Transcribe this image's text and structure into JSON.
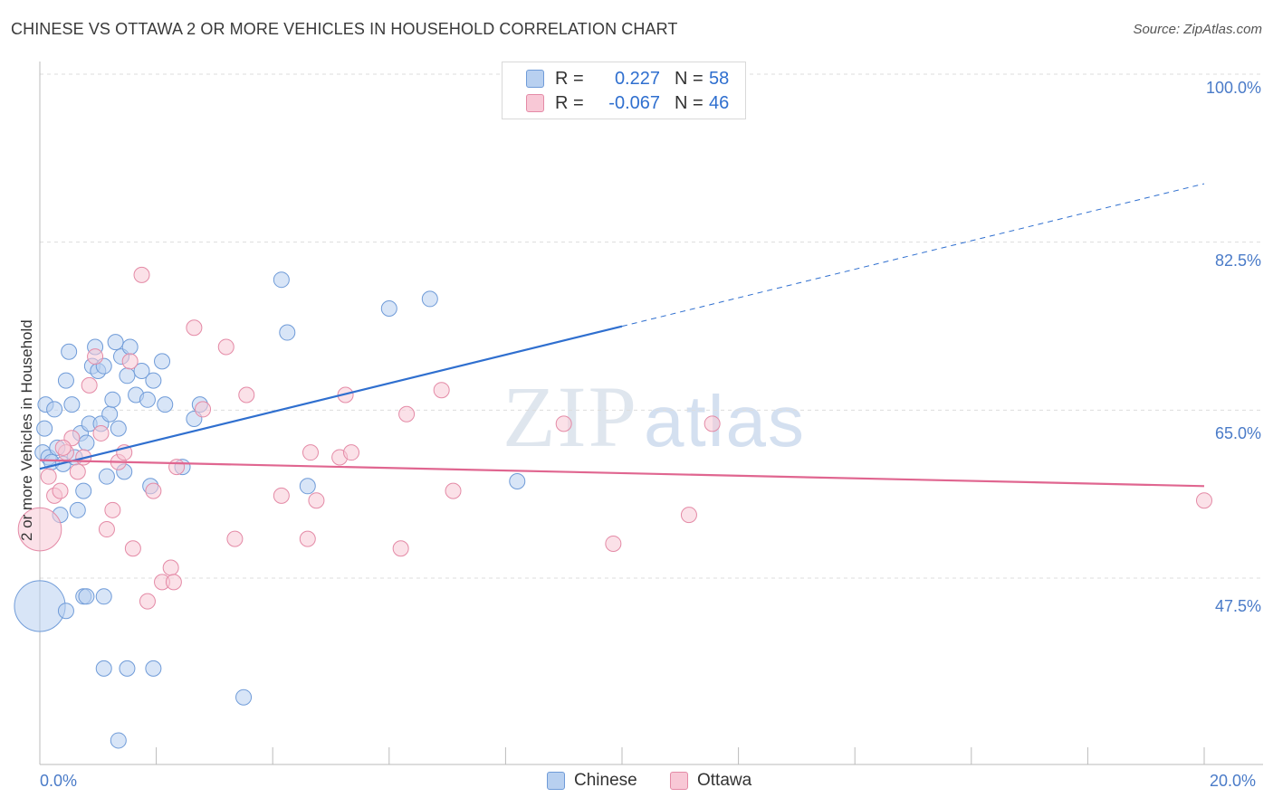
{
  "title": "CHINESE VS OTTAWA 2 OR MORE VEHICLES IN HOUSEHOLD CORRELATION CHART",
  "source": "Source: ZipAtlas.com",
  "watermark": {
    "zip": "ZIP",
    "atlas": "atlas"
  },
  "colors": {
    "chinese_fill": "#b8d0f0",
    "chinese_stroke": "#6f9bd8",
    "chinese_line": "#2f6fcf",
    "ottawa_fill": "#f8c8d6",
    "ottawa_stroke": "#e48aa6",
    "ottawa_line": "#e06690",
    "tick_text": "#4a7bc8",
    "grid": "#dddddd"
  },
  "legend": {
    "rows": [
      {
        "series": "Chinese",
        "r_label": "R =",
        "r_value": "0.227",
        "n_label": "N =",
        "n_value": "58"
      },
      {
        "series": "Ottawa",
        "r_label": "R =",
        "r_value": "-0.067",
        "n_label": "N =",
        "n_value": "46"
      }
    ]
  },
  "bottom_legend": [
    "Chinese",
    "Ottawa"
  ],
  "chart_data": {
    "type": "scatter",
    "title": "CHINESE VS OTTAWA 2 OR MORE VEHICLES IN HOUSEHOLD CORRELATION CHART",
    "xlabel": "",
    "ylabel": "2 or more Vehicles in Household",
    "xlim": [
      0,
      20
    ],
    "ylim": [
      32.5,
      100
    ],
    "x_ticks": [
      "0.0%",
      "20.0%"
    ],
    "y_ticks": [
      "100.0%",
      "82.5%",
      "65.0%",
      "47.5%"
    ],
    "y_tick_values": [
      100,
      82.5,
      65,
      47.5
    ],
    "grid": true,
    "series": [
      {
        "name": "Chinese",
        "trend": {
          "x0": 0,
          "y0": 60.3,
          "x1": 20,
          "y1": 90.0,
          "solid_until_x": 10
        },
        "points": [
          [
            0.05,
            62.0,
            1
          ],
          [
            0.08,
            64.5,
            1
          ],
          [
            0.1,
            67.0,
            1
          ],
          [
            0.15,
            61.5,
            1
          ],
          [
            0.2,
            61.0,
            1
          ],
          [
            0.25,
            66.5,
            1
          ],
          [
            0.3,
            62.5,
            1
          ],
          [
            0.35,
            55.5,
            1
          ],
          [
            0.4,
            60.8,
            1
          ],
          [
            0.45,
            69.5,
            1
          ],
          [
            0.5,
            72.5,
            1
          ],
          [
            0.55,
            67.0,
            1
          ],
          [
            0.6,
            61.5,
            1
          ],
          [
            0.65,
            56.0,
            1
          ],
          [
            0.7,
            64.0,
            1
          ],
          [
            0.75,
            58.0,
            1
          ],
          [
            0.8,
            63.0,
            1
          ],
          [
            0.85,
            65.0,
            1
          ],
          [
            0.9,
            71.0,
            1
          ],
          [
            0.95,
            73.0,
            1
          ],
          [
            1.0,
            70.5,
            1
          ],
          [
            1.05,
            65.0,
            1
          ],
          [
            1.1,
            71.0,
            1
          ],
          [
            1.15,
            59.5,
            1
          ],
          [
            1.2,
            66.0,
            1
          ],
          [
            1.25,
            67.5,
            1
          ],
          [
            1.3,
            73.5,
            1
          ],
          [
            1.35,
            64.5,
            1
          ],
          [
            1.4,
            72.0,
            1
          ],
          [
            1.45,
            60.0,
            1
          ],
          [
            1.5,
            70.0,
            1
          ],
          [
            1.55,
            73.0,
            1
          ],
          [
            1.65,
            68.0,
            1
          ],
          [
            1.75,
            70.5,
            1
          ],
          [
            1.85,
            67.5,
            1
          ],
          [
            1.9,
            58.5,
            1
          ],
          [
            1.95,
            69.5,
            1
          ],
          [
            2.1,
            71.5,
            1
          ],
          [
            2.15,
            67.0,
            1
          ],
          [
            2.45,
            60.5,
            1
          ],
          [
            2.65,
            65.5,
            1
          ],
          [
            2.75,
            67.0,
            1
          ],
          [
            4.15,
            80.0,
            1
          ],
          [
            4.25,
            74.5,
            1
          ],
          [
            4.6,
            58.5,
            1
          ],
          [
            6.0,
            77.0,
            1
          ],
          [
            6.7,
            78.0,
            1
          ],
          [
            8.2,
            59.0,
            1
          ],
          [
            0.0,
            46.0,
            3.3
          ],
          [
            0.45,
            45.5,
            1
          ],
          [
            0.75,
            47.0,
            1
          ],
          [
            0.8,
            47.0,
            1
          ],
          [
            1.1,
            39.5,
            1
          ],
          [
            1.5,
            39.5,
            1
          ],
          [
            1.95,
            39.5,
            1
          ],
          [
            3.5,
            36.5,
            1
          ],
          [
            1.35,
            32.0,
            1
          ],
          [
            1.1,
            47.0,
            1
          ]
        ]
      },
      {
        "name": "Ottawa",
        "trend": {
          "x0": 0,
          "y0": 61.2,
          "x1": 20,
          "y1": 58.5,
          "solid_until_x": 20
        },
        "points": [
          [
            0.0,
            54.0,
            2.8
          ],
          [
            0.15,
            59.5,
            1
          ],
          [
            0.25,
            57.5,
            1
          ],
          [
            0.35,
            58.0,
            1
          ],
          [
            0.45,
            62.0,
            1
          ],
          [
            0.55,
            63.5,
            1
          ],
          [
            0.65,
            60.0,
            1
          ],
          [
            0.75,
            61.5,
            1
          ],
          [
            0.85,
            69.0,
            1
          ],
          [
            0.95,
            72.0,
            1
          ],
          [
            1.05,
            64.0,
            1
          ],
          [
            1.15,
            54.0,
            1
          ],
          [
            1.25,
            56.0,
            1
          ],
          [
            1.35,
            61.0,
            1
          ],
          [
            1.45,
            62.0,
            1
          ],
          [
            1.55,
            71.5,
            1
          ],
          [
            1.6,
            52.0,
            1
          ],
          [
            1.75,
            80.5,
            1
          ],
          [
            1.85,
            46.5,
            1
          ],
          [
            1.95,
            58.0,
            1
          ],
          [
            2.1,
            48.5,
            1
          ],
          [
            2.25,
            50.0,
            1
          ],
          [
            2.3,
            48.5,
            1
          ],
          [
            2.35,
            60.5,
            1
          ],
          [
            2.65,
            75.0,
            1
          ],
          [
            2.8,
            66.5,
            1
          ],
          [
            3.2,
            73.0,
            1
          ],
          [
            3.35,
            53.0,
            1
          ],
          [
            3.55,
            68.0,
            1
          ],
          [
            4.15,
            57.5,
            1
          ],
          [
            4.6,
            53.0,
            1
          ],
          [
            4.65,
            62.0,
            1
          ],
          [
            4.75,
            57.0,
            1
          ],
          [
            5.15,
            61.5,
            1
          ],
          [
            5.25,
            68.0,
            1
          ],
          [
            5.35,
            62.0,
            1
          ],
          [
            6.2,
            52.0,
            1
          ],
          [
            6.3,
            66.0,
            1
          ],
          [
            6.9,
            68.5,
            1
          ],
          [
            7.1,
            58.0,
            1
          ],
          [
            9.0,
            65.0,
            1
          ],
          [
            9.85,
            52.5,
            1
          ],
          [
            11.15,
            55.5,
            1
          ],
          [
            11.55,
            65.0,
            1
          ],
          [
            20.0,
            57.0,
            1
          ],
          [
            0.4,
            62.5,
            1
          ]
        ]
      }
    ]
  }
}
